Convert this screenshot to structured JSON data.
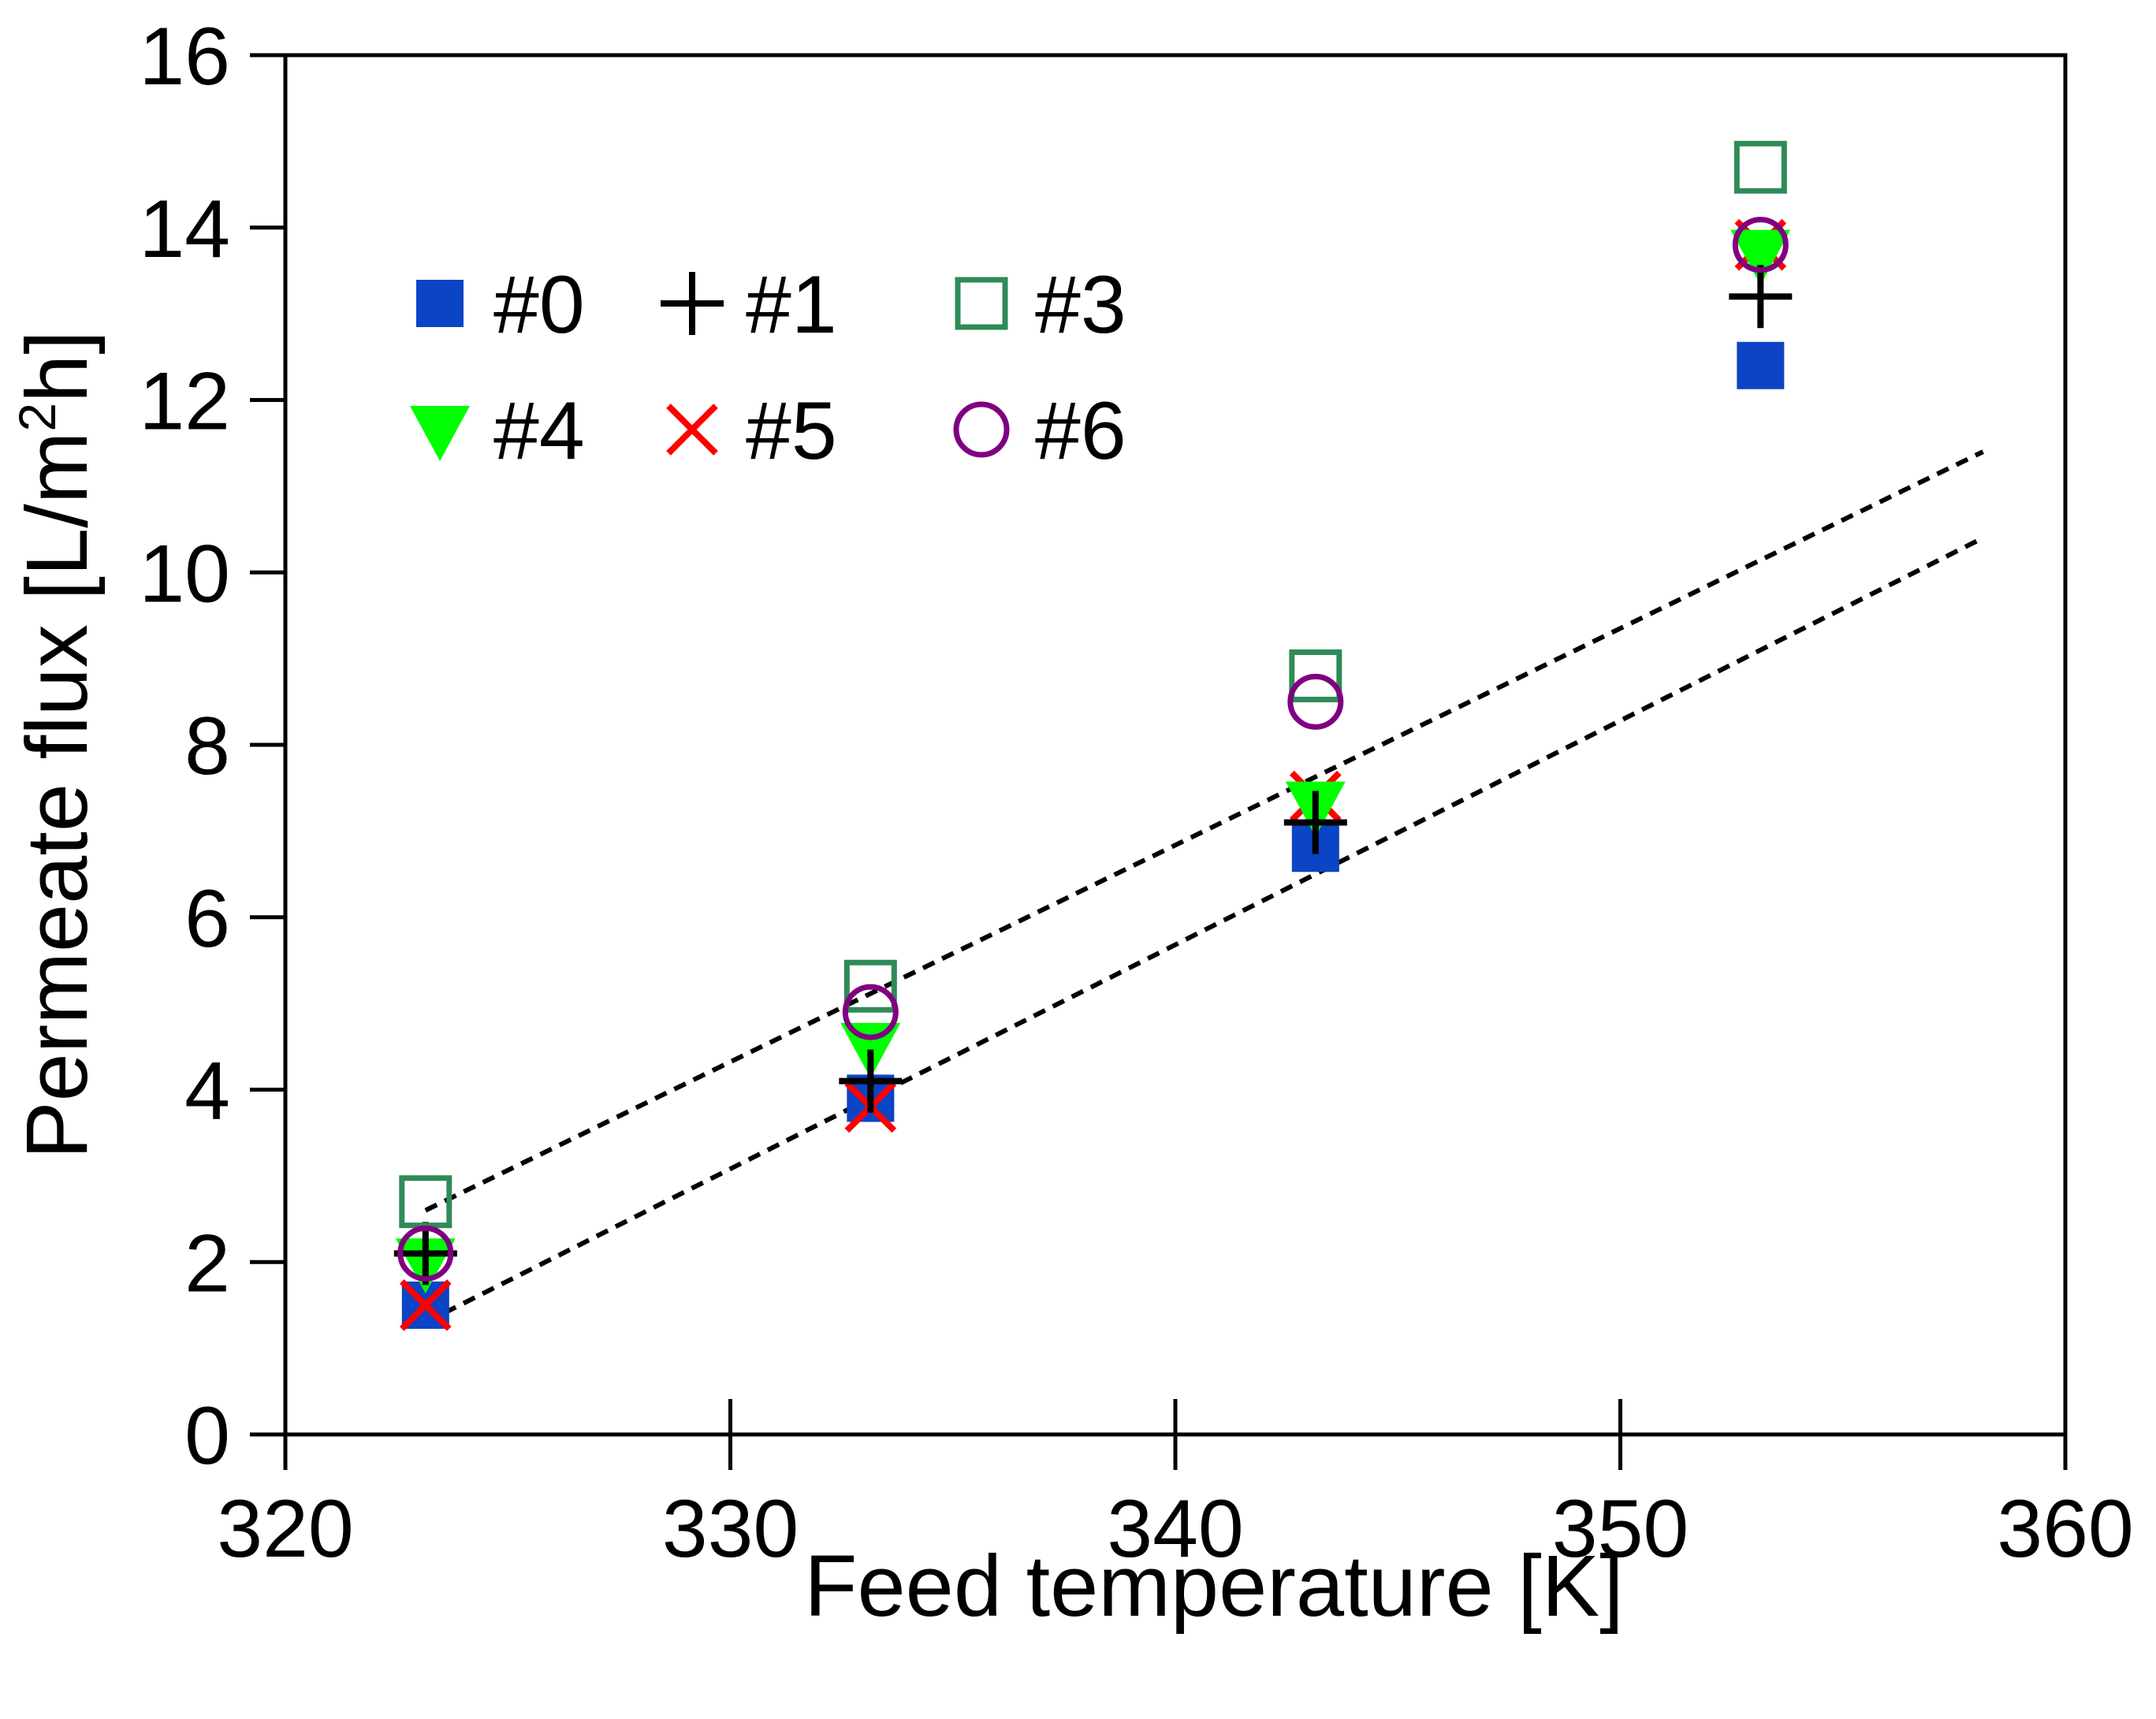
{
  "chart_data": {
    "type": "scatter",
    "title": "",
    "xlabel": "Feed temperature [K]",
    "ylabel": "Permeate flux [L/m2h]",
    "ylabel_parts": {
      "main": "Permeate flux [L/m",
      "sup": "2",
      "tail": "h]"
    },
    "xlim": [
      320,
      360
    ],
    "ylim": [
      0,
      16
    ],
    "xticks": [
      320,
      330,
      340,
      350,
      360
    ],
    "yticks": [
      0,
      2,
      4,
      6,
      8,
      10,
      12,
      14,
      16
    ],
    "grid": false,
    "legend_position": "top-left",
    "series": [
      {
        "name": "#0",
        "marker": "filled-square",
        "color": "#0b44c4",
        "x": [
          323.15,
          333.15,
          343.15,
          353.15
        ],
        "y": [
          1.5,
          3.9,
          6.8,
          12.4
        ]
      },
      {
        "name": "#1",
        "marker": "plus",
        "color": "#000000",
        "x": [
          323.15,
          333.15,
          343.15,
          353.15
        ],
        "y": [
          2.1,
          4.1,
          7.1,
          13.2
        ]
      },
      {
        "name": "#3",
        "marker": "open-square",
        "color": "#2e8b57",
        "x": [
          323.15,
          333.15,
          343.15,
          353.15
        ],
        "y": [
          2.7,
          5.2,
          8.8,
          14.7
        ]
      },
      {
        "name": "#4",
        "marker": "filled-triangle-down",
        "color": "#00ff00",
        "x": [
          323.15,
          333.15,
          343.15,
          353.15
        ],
        "y": [
          2.0,
          4.5,
          7.3,
          13.7
        ]
      },
      {
        "name": "#5",
        "marker": "x",
        "color": "#ff0000",
        "x": [
          323.15,
          333.15,
          343.15,
          353.15
        ],
        "y": [
          1.5,
          3.8,
          7.4,
          13.8
        ]
      },
      {
        "name": "#6",
        "marker": "open-circle",
        "color": "#800080",
        "x": [
          323.15,
          333.15,
          343.15,
          353.15
        ],
        "y": [
          2.1,
          4.9,
          8.5,
          13.8
        ]
      }
    ],
    "fit_lines": [
      {
        "name": "upper fit",
        "style": "dashed",
        "color": "#000000",
        "x": [
          323.15,
          358.15
        ],
        "y": [
          2.6,
          11.4
        ]
      },
      {
        "name": "lower fit",
        "style": "dashed",
        "color": "#000000",
        "x": [
          323.15,
          358.15
        ],
        "y": [
          1.3,
          10.4
        ]
      }
    ]
  }
}
